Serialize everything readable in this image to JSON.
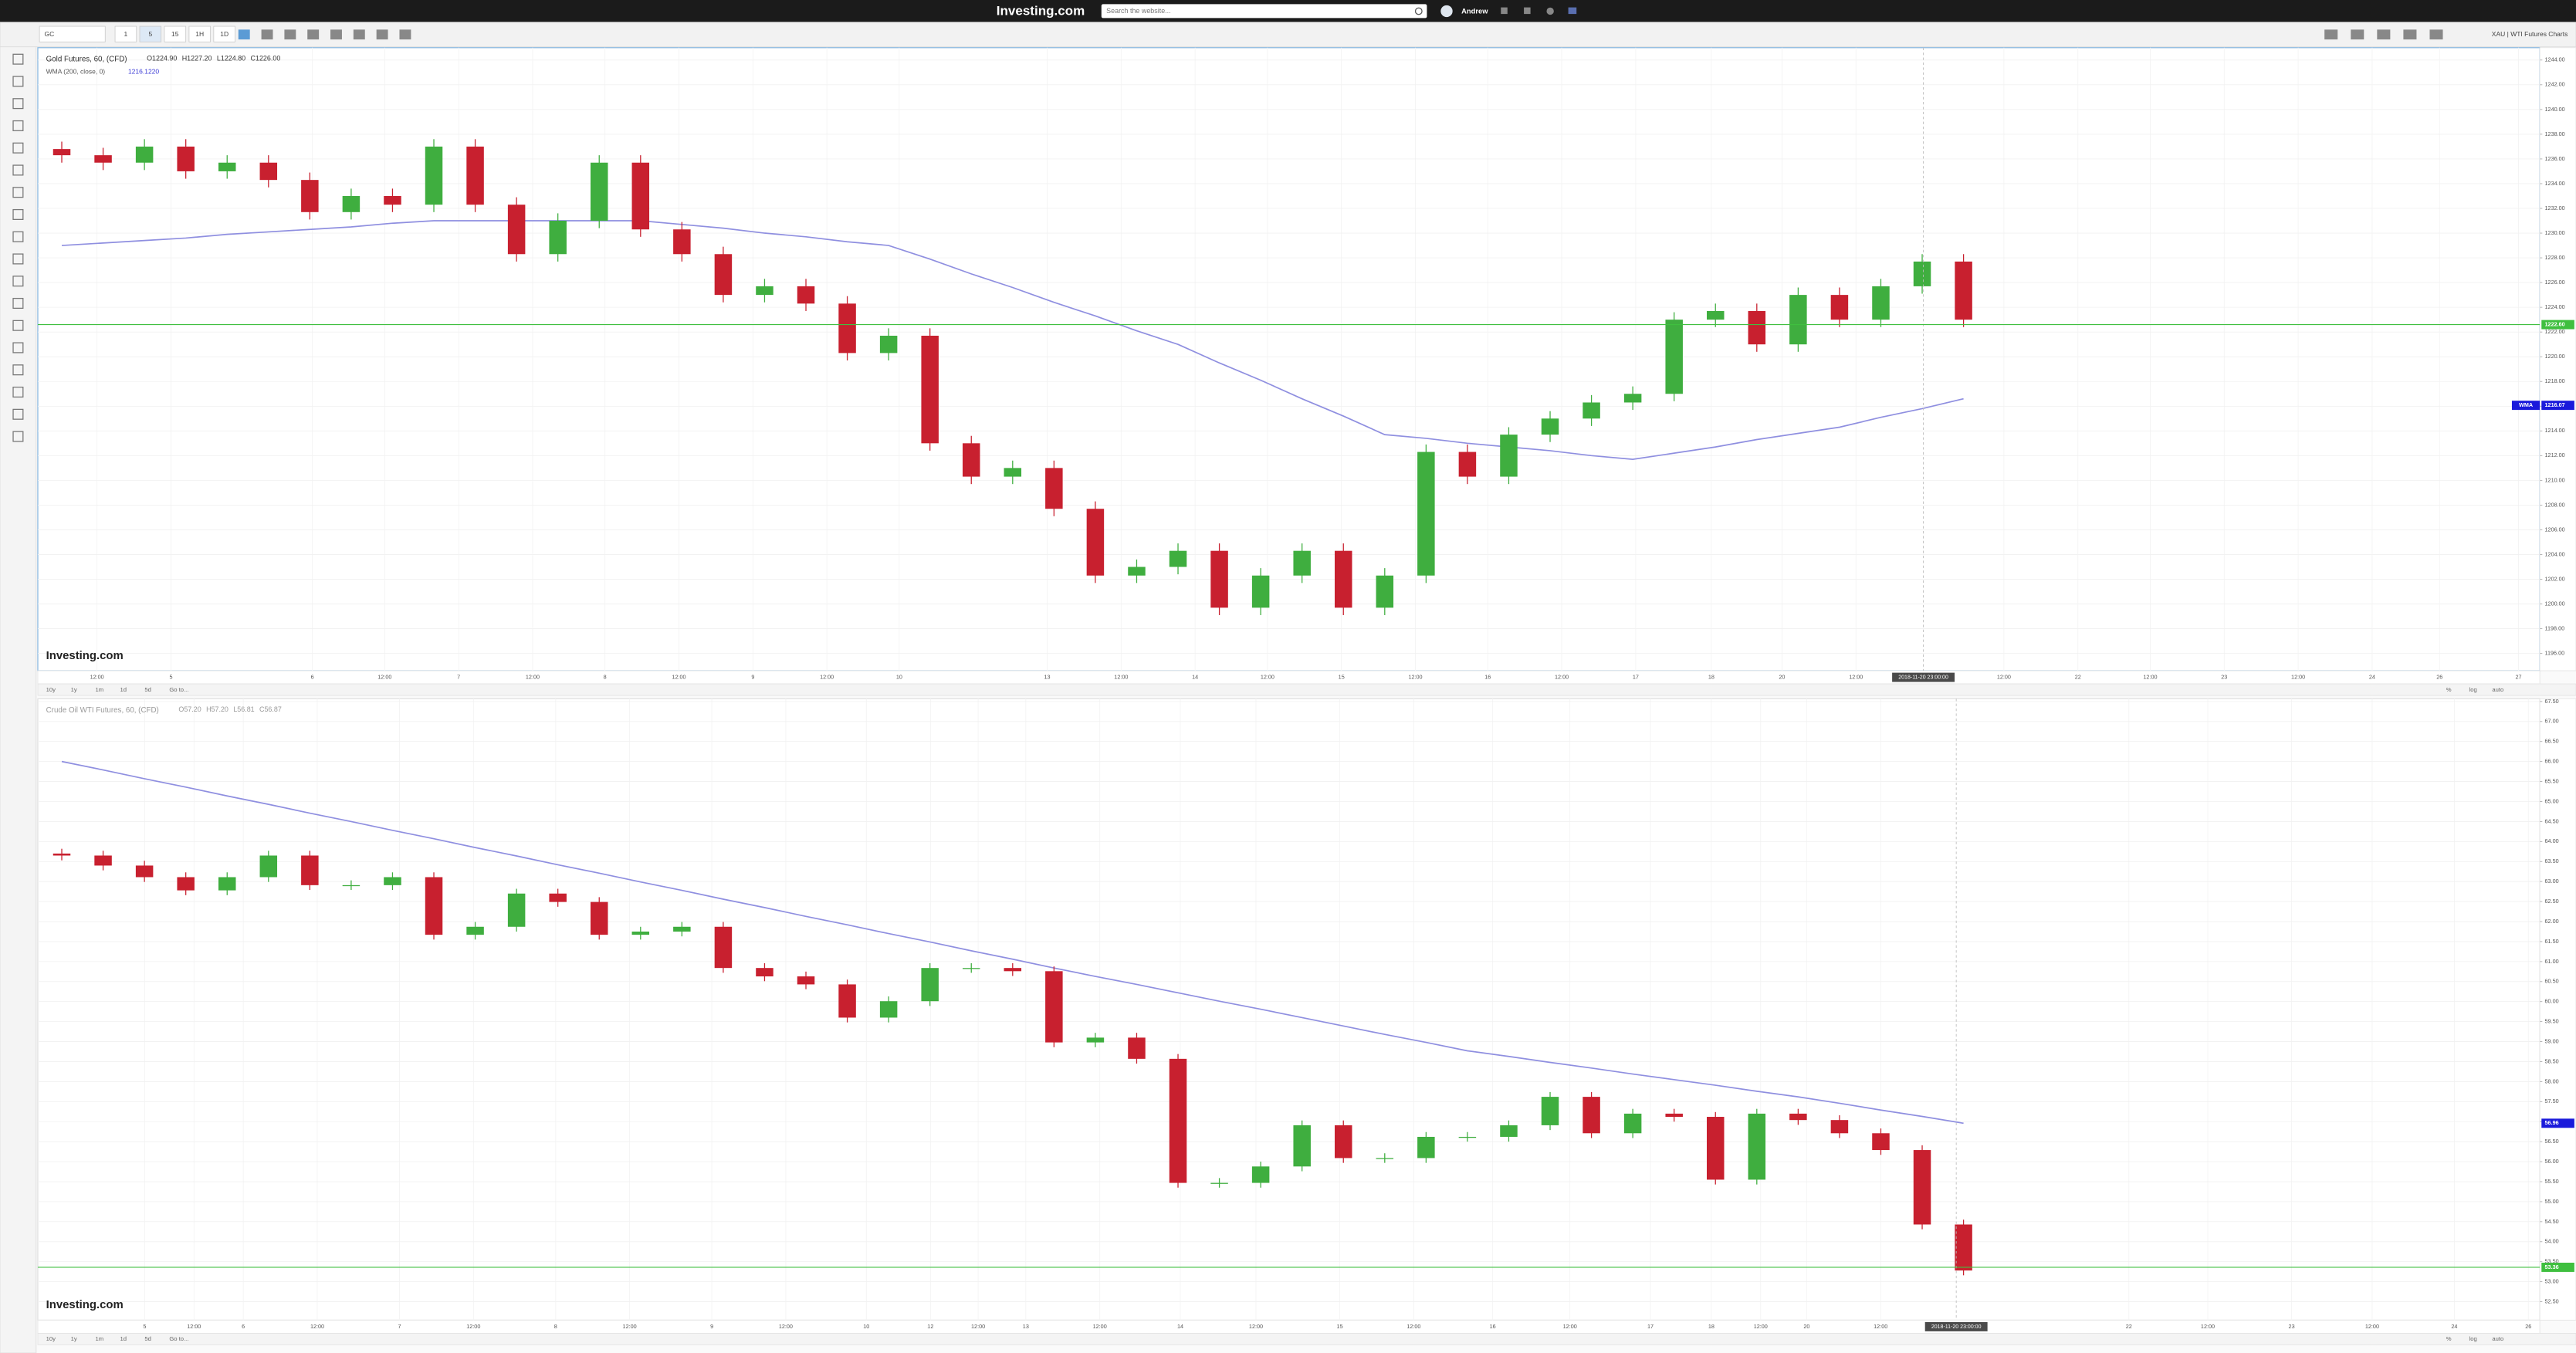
{
  "nav": {
    "logo": "Investing.com",
    "search_placeholder": "Search the website...",
    "user": "Andrew"
  },
  "toolbar": {
    "symbol": "GC",
    "intervals": [
      "1",
      "5",
      "15",
      "1H",
      "1D"
    ],
    "right_label": "XAU | WTI Futures Charts"
  },
  "chart_data": [
    {
      "type": "candlestick",
      "title": "Gold Futures, 60, (CFD)",
      "legend_values": [
        "O1224.90",
        "H1227.20",
        "L1224.80",
        "C1226.00"
      ],
      "indicator": {
        "name": "WMA (200, close, 0)",
        "value": "1216.1220"
      },
      "up_color": "#3fae3f",
      "down_color": "#c8202f",
      "candles": [
        [
          1236.8,
          1237.4,
          1235.7,
          1236.3
        ],
        [
          1236.3,
          1236.9,
          1235.1,
          1235.7
        ],
        [
          1235.7,
          1237.6,
          1235.1,
          1237.0
        ],
        [
          1237.0,
          1237.6,
          1234.4,
          1235.0
        ],
        [
          1235.0,
          1236.3,
          1234.4,
          1235.7
        ],
        [
          1235.7,
          1236.3,
          1233.7,
          1234.3
        ],
        [
          1234.3,
          1234.9,
          1231.1,
          1231.7
        ],
        [
          1231.7,
          1233.6,
          1231.1,
          1233.0
        ],
        [
          1233.0,
          1233.6,
          1231.7,
          1232.3
        ],
        [
          1232.3,
          1237.6,
          1231.7,
          1237.0
        ],
        [
          1237.0,
          1237.6,
          1231.7,
          1232.3
        ],
        [
          1232.3,
          1232.9,
          1227.7,
          1228.3
        ],
        [
          1228.3,
          1231.6,
          1227.7,
          1231.0
        ],
        [
          1231.0,
          1236.3,
          1230.4,
          1235.7
        ],
        [
          1235.7,
          1236.3,
          1229.7,
          1230.3
        ],
        [
          1230.3,
          1230.9,
          1227.7,
          1228.3
        ],
        [
          1228.3,
          1228.9,
          1224.4,
          1225.0
        ],
        [
          1225.0,
          1226.3,
          1224.4,
          1225.7
        ],
        [
          1225.7,
          1226.3,
          1223.7,
          1224.3
        ],
        [
          1224.3,
          1224.9,
          1219.7,
          1220.3
        ],
        [
          1220.3,
          1222.3,
          1219.7,
          1221.7
        ],
        [
          1221.7,
          1222.3,
          1212.4,
          1213.0
        ],
        [
          1213.0,
          1213.6,
          1209.7,
          1210.3
        ],
        [
          1210.3,
          1211.6,
          1209.7,
          1211.0
        ],
        [
          1211.0,
          1211.6,
          1207.1,
          1207.7
        ],
        [
          1207.7,
          1208.3,
          1201.7,
          1202.3
        ],
        [
          1202.3,
          1203.6,
          1201.7,
          1203.0
        ],
        [
          1203.0,
          1204.9,
          1202.4,
          1204.3
        ],
        [
          1204.3,
          1204.9,
          1199.1,
          1199.7
        ],
        [
          1199.7,
          1202.9,
          1199.1,
          1202.3
        ],
        [
          1202.3,
          1204.9,
          1201.7,
          1204.3
        ],
        [
          1204.3,
          1204.9,
          1199.1,
          1199.7
        ],
        [
          1199.7,
          1202.9,
          1199.1,
          1202.3
        ],
        [
          1202.3,
          1212.9,
          1201.7,
          1212.3
        ],
        [
          1212.3,
          1212.9,
          1209.7,
          1210.3
        ],
        [
          1210.3,
          1214.3,
          1209.7,
          1213.7
        ],
        [
          1213.7,
          1215.6,
          1213.1,
          1215.0
        ],
        [
          1215.0,
          1216.9,
          1214.4,
          1216.3
        ],
        [
          1216.3,
          1217.6,
          1215.7,
          1217.0
        ],
        [
          1217.0,
          1223.6,
          1216.4,
          1223.0
        ],
        [
          1223.0,
          1224.3,
          1222.4,
          1223.7
        ],
        [
          1223.7,
          1224.3,
          1220.4,
          1221.0
        ],
        [
          1221.0,
          1225.6,
          1220.4,
          1225.0
        ],
        [
          1225.0,
          1225.6,
          1222.4,
          1223.0
        ],
        [
          1223.0,
          1226.3,
          1222.4,
          1225.7
        ],
        [
          1225.7,
          1228.3,
          1225.1,
          1227.7
        ],
        [
          1227.7,
          1228.3,
          1222.4,
          1223.0
        ]
      ],
      "ma": {
        "color": "#8f8fe0",
        "values": [
          1229.0,
          1229.2,
          1229.4,
          1229.6,
          1229.9,
          1230.1,
          1230.3,
          1230.5,
          1230.8,
          1231.0,
          1231.0,
          1231.0,
          1231.0,
          1231.0,
          1231.0,
          1230.7,
          1230.4,
          1230.0,
          1229.7,
          1229.3,
          1229.0,
          1227.9,
          1226.7,
          1225.6,
          1224.4,
          1223.3,
          1222.1,
          1221.0,
          1219.5,
          1218.1,
          1216.6,
          1215.2,
          1213.7,
          1213.4,
          1213.0,
          1212.7,
          1212.4,
          1212.0,
          1211.7,
          1212.2,
          1212.7,
          1213.3,
          1213.8,
          1214.3,
          1215.1,
          1215.8,
          1216.6
        ]
      },
      "ylim": [
        1194.6,
        1245.0
      ],
      "yticks": [
        {
          "value": 1196,
          "label": "1196.00"
        },
        {
          "value": 1198,
          "label": "1198.00"
        },
        {
          "value": 1200,
          "label": "1200.00"
        },
        {
          "value": 1202,
          "label": "1202.00"
        },
        {
          "value": 1204,
          "label": "1204.00"
        },
        {
          "value": 1206,
          "label": "1206.00"
        },
        {
          "value": 1208,
          "label": "1208.00"
        },
        {
          "value": 1210,
          "label": "1210.00"
        },
        {
          "value": 1212,
          "label": "1212.00"
        },
        {
          "value": 1214,
          "label": "1214.00"
        },
        {
          "value": 1216,
          "label": "1216.00"
        },
        {
          "value": 1218,
          "label": "1218.00"
        },
        {
          "value": 1220,
          "label": "1220.00"
        },
        {
          "value": 1222,
          "label": "1222.00"
        },
        {
          "value": 1224,
          "label": "1224.00"
        },
        {
          "value": 1226,
          "label": "1226.00"
        },
        {
          "value": 1228,
          "label": "1228.00"
        },
        {
          "value": 1230,
          "label": "1230.00"
        },
        {
          "value": 1232,
          "label": "1232.00"
        },
        {
          "value": 1234,
          "label": "1234.00"
        },
        {
          "value": 1236,
          "label": "1236.00"
        },
        {
          "value": 1238,
          "label": "1238.00"
        },
        {
          "value": 1240,
          "label": "1240.00"
        },
        {
          "value": 1242,
          "label": "1242.00"
        },
        {
          "value": 1244,
          "label": "1244.00"
        }
      ],
      "grid": true,
      "x_labels": [
        "12:00",
        "5",
        "6",
        "12:00",
        "7",
        "12:00",
        "8",
        "12:00",
        "9",
        "12:00",
        "10",
        "13",
        "12:00",
        "14",
        "12:00",
        "15",
        "12:00",
        "16",
        "12:00",
        "17",
        "18",
        "20",
        "12:00",
        "12:00",
        "22",
        "12:00",
        "23",
        "12:00",
        "24",
        "26",
        "27"
      ],
      "crosshair_label": "2018-11-20 23:00:00",
      "price_labels": [
        {
          "value": 1222.6,
          "label": "1222.60",
          "color": "#3fbf3f",
          "line": true
        },
        {
          "value": 1216.07,
          "label": "1216.07",
          "tag": "WMA",
          "color": "#1a1adb",
          "line": false
        }
      ],
      "watermark": "Investing.com",
      "range_buttons": [
        "10y",
        "1y",
        "1m",
        "1d",
        "5d",
        "Go to..."
      ],
      "scale_buttons": [
        "%",
        "log",
        "auto"
      ]
    },
    {
      "type": "candlestick",
      "title": "Crude Oil WTI Futures, 60, (CFD)",
      "legend_values": [
        "O57.20",
        "H57.20",
        "L56.81",
        "C56.87"
      ],
      "up_color": "#3fae3f",
      "down_color": "#c8202f",
      "candles": [
        [
          63.7,
          63.82,
          63.53,
          63.65
        ],
        [
          63.65,
          63.77,
          63.28,
          63.4
        ],
        [
          63.4,
          63.52,
          62.99,
          63.11
        ],
        [
          63.11,
          63.23,
          62.66,
          62.78
        ],
        [
          62.78,
          63.23,
          62.66,
          63.11
        ],
        [
          63.11,
          63.77,
          62.99,
          63.65
        ],
        [
          63.65,
          63.77,
          62.79,
          62.91
        ],
        [
          62.91,
          63.03,
          62.79,
          62.91
        ],
        [
          62.91,
          63.23,
          62.79,
          63.11
        ],
        [
          63.11,
          63.23,
          61.55,
          61.67
        ],
        [
          61.67,
          61.99,
          61.55,
          61.87
        ],
        [
          61.87,
          62.82,
          61.75,
          62.7
        ],
        [
          62.7,
          62.82,
          62.37,
          62.49
        ],
        [
          62.49,
          62.61,
          61.55,
          61.67
        ],
        [
          61.67,
          61.87,
          61.55,
          61.75
        ],
        [
          61.75,
          61.99,
          61.63,
          61.87
        ],
        [
          61.87,
          61.99,
          60.72,
          60.84
        ],
        [
          60.84,
          60.96,
          60.51,
          60.63
        ],
        [
          60.63,
          60.75,
          60.31,
          60.43
        ],
        [
          60.43,
          60.55,
          59.48,
          59.6
        ],
        [
          59.6,
          60.13,
          59.48,
          60.01
        ],
        [
          60.01,
          60.96,
          59.89,
          60.84
        ],
        [
          60.84,
          60.96,
          60.72,
          60.84
        ],
        [
          60.84,
          60.96,
          60.64,
          60.76
        ],
        [
          60.76,
          60.88,
          58.86,
          58.98
        ],
        [
          58.98,
          59.22,
          58.86,
          59.1
        ],
        [
          59.1,
          59.22,
          58.45,
          58.57
        ],
        [
          58.57,
          58.69,
          55.35,
          55.47
        ],
        [
          55.47,
          55.59,
          55.35,
          55.47
        ],
        [
          55.47,
          56.0,
          55.35,
          55.88
        ],
        [
          55.88,
          57.03,
          55.76,
          56.91
        ],
        [
          56.91,
          57.03,
          55.97,
          56.09
        ],
        [
          56.09,
          56.21,
          55.97,
          56.09
        ],
        [
          56.09,
          56.74,
          55.97,
          56.62
        ],
        [
          56.62,
          56.74,
          56.5,
          56.62
        ],
        [
          56.62,
          57.03,
          56.5,
          56.91
        ],
        [
          56.91,
          57.74,
          56.79,
          57.62
        ],
        [
          57.62,
          57.74,
          56.59,
          56.71
        ],
        [
          56.71,
          57.32,
          56.59,
          57.2
        ],
        [
          57.2,
          57.32,
          57.0,
          57.12
        ],
        [
          57.12,
          57.24,
          55.43,
          55.55
        ],
        [
          55.55,
          57.32,
          55.43,
          57.2
        ],
        [
          57.2,
          57.32,
          56.92,
          57.04
        ],
        [
          57.04,
          57.16,
          56.59,
          56.71
        ],
        [
          56.71,
          56.83,
          56.17,
          56.29
        ],
        [
          56.29,
          56.41,
          54.31,
          54.43
        ],
        [
          54.43,
          54.55,
          53.16,
          53.28
        ]
      ],
      "ma": {
        "color": "#8f8fe0",
        "values": [
          66.0,
          65.79,
          65.57,
          65.36,
          65.14,
          64.93,
          64.71,
          64.5,
          64.28,
          64.07,
          63.85,
          63.64,
          63.42,
          63.21,
          62.99,
          62.78,
          62.56,
          62.35,
          62.13,
          61.92,
          61.7,
          61.49,
          61.27,
          61.06,
          60.84,
          60.63,
          60.43,
          60.22,
          60.01,
          59.81,
          59.6,
          59.39,
          59.18,
          58.98,
          58.77,
          58.63,
          58.48,
          58.34,
          58.19,
          58.05,
          57.91,
          57.76,
          57.62,
          57.46,
          57.29,
          57.13,
          56.96
        ]
      },
      "ylim": [
        52.04,
        67.57
      ],
      "yticks": [
        {
          "value": 52.5,
          "label": "52.50"
        },
        {
          "value": 53,
          "label": "53.00"
        },
        {
          "value": 53.5,
          "label": "53.50"
        },
        {
          "value": 54,
          "label": "54.00"
        },
        {
          "value": 54.5,
          "label": "54.50"
        },
        {
          "value": 55,
          "label": "55.00"
        },
        {
          "value": 55.5,
          "label": "55.50"
        },
        {
          "value": 56,
          "label": "56.00"
        },
        {
          "value": 56.5,
          "label": "56.50"
        },
        {
          "value": 57,
          "label": "57.00"
        },
        {
          "value": 57.5,
          "label": "57.50"
        },
        {
          "value": 58,
          "label": "58.00"
        },
        {
          "value": 58.5,
          "label": "58.50"
        },
        {
          "value": 59,
          "label": "59.00"
        },
        {
          "value": 59.5,
          "label": "59.50"
        },
        {
          "value": 60,
          "label": "60.00"
        },
        {
          "value": 60.5,
          "label": "60.50"
        },
        {
          "value": 61,
          "label": "61.00"
        },
        {
          "value": 61.5,
          "label": "61.50"
        },
        {
          "value": 62,
          "label": "62.00"
        },
        {
          "value": 62.5,
          "label": "62.50"
        },
        {
          "value": 63,
          "label": "63.00"
        },
        {
          "value": 63.5,
          "label": "63.50"
        },
        {
          "value": 64,
          "label": "64.00"
        },
        {
          "value": 64.5,
          "label": "64.50"
        },
        {
          "value": 65,
          "label": "65.00"
        },
        {
          "value": 65.5,
          "label": "65.50"
        },
        {
          "value": 66,
          "label": "66.00"
        },
        {
          "value": 66.5,
          "label": "66.50"
        },
        {
          "value": 67,
          "label": "67.00"
        },
        {
          "value": 67.5,
          "label": "67.50"
        }
      ],
      "grid": true,
      "x_labels": [
        "5",
        "12:00",
        "6",
        "12:00",
        "7",
        "12:00",
        "8",
        "12:00",
        "9",
        "12:00",
        "10",
        "12",
        "12:00",
        "13",
        "12:00",
        "14",
        "12:00",
        "15",
        "12:00",
        "16",
        "12:00",
        "17",
        "18",
        "12:00",
        "20",
        "12:00",
        "22",
        "12:00",
        "23",
        "12:00",
        "24",
        "26"
      ],
      "crosshair_label": "2018-11-20 23:00:00",
      "price_labels": [
        {
          "value": 53.36,
          "label": "53.36",
          "color": "#3fbf3f",
          "line": true
        },
        {
          "value": 56.96,
          "label": "56.96",
          "color": "#1a1adb",
          "line": false
        }
      ],
      "watermark": "Investing.com",
      "range_buttons": [
        "10y",
        "1y",
        "1m",
        "1d",
        "5d",
        "Go to..."
      ],
      "scale_buttons": [
        "%",
        "log",
        "auto"
      ]
    }
  ]
}
